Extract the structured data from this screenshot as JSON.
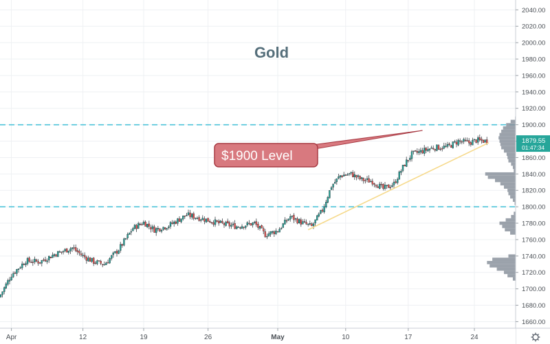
{
  "chart_data": {
    "type": "candlestick",
    "title": "Gold",
    "instrument": "Gold",
    "y_axis": {
      "ticks": [
        1660,
        1680,
        1700,
        1720,
        1740,
        1760,
        1780,
        1800,
        1820,
        1840,
        1860,
        1880,
        1900,
        1920,
        1940,
        1960,
        1980,
        2000,
        2020,
        2040
      ],
      "tick_labels": [
        "1660.00",
        "1680.00",
        "1700.00",
        "1720.00",
        "1740.00",
        "1760.00",
        "1780.00",
        "1800.00",
        "1820.00",
        "1840.00",
        "1860.00",
        "1880.00",
        "1900.00",
        "1920.00",
        "1940.00",
        "1960.00",
        "1980.00",
        "2000.00",
        "2020.00",
        "2040.00"
      ],
      "range": [
        1652,
        2052
      ],
      "side": "right"
    },
    "x_axis": {
      "tick_labels": [
        "Apr",
        "12",
        "19",
        "26",
        "May",
        "10",
        "17",
        "24"
      ],
      "tick_bold": [
        false,
        false,
        false,
        false,
        true,
        false,
        false,
        false
      ],
      "tick_bar_index": [
        6,
        46,
        80,
        116,
        155,
        193,
        228,
        265
      ],
      "bars_total": 271
    },
    "price_label": {
      "value": "1879.55",
      "countdown": "01:47:34",
      "color": "#26a69a"
    },
    "horizontal_lines": [
      {
        "value": 1900,
        "style": "dashed",
        "color": "#4cc3d9"
      },
      {
        "value": 1800,
        "style": "dashed",
        "color": "#4cc3d9"
      }
    ],
    "trendline": {
      "from": {
        "bar": 172,
        "value": 1772
      },
      "to": {
        "bar": 273,
        "value": 1878
      },
      "color": "#f6d98a"
    },
    "callout": {
      "text": "$1900 Level",
      "color": "#c0464f",
      "points_to": {
        "bar": 236,
        "value": 1893
      }
    },
    "candle_colors": {
      "up": "#26a69a",
      "down": "#ef5350"
    },
    "anchors": [
      [
        0,
        1693
      ],
      [
        6,
        1717
      ],
      [
        14,
        1734
      ],
      [
        22,
        1733
      ],
      [
        30,
        1742
      ],
      [
        40,
        1750
      ],
      [
        46,
        1740
      ],
      [
        52,
        1733
      ],
      [
        58,
        1730
      ],
      [
        66,
        1748
      ],
      [
        74,
        1774
      ],
      [
        80,
        1781
      ],
      [
        86,
        1772
      ],
      [
        94,
        1777
      ],
      [
        104,
        1790
      ],
      [
        112,
        1786
      ],
      [
        122,
        1780
      ],
      [
        132,
        1776
      ],
      [
        142,
        1780
      ],
      [
        148,
        1766
      ],
      [
        155,
        1771
      ],
      [
        162,
        1788
      ],
      [
        168,
        1781
      ],
      [
        174,
        1776
      ],
      [
        180,
        1796
      ],
      [
        185,
        1825
      ],
      [
        190,
        1838
      ],
      [
        196,
        1840
      ],
      [
        202,
        1833
      ],
      [
        208,
        1831
      ],
      [
        214,
        1822
      ],
      [
        220,
        1828
      ],
      [
        226,
        1852
      ],
      [
        230,
        1864
      ],
      [
        236,
        1868
      ],
      [
        242,
        1872
      ],
      [
        250,
        1873
      ],
      [
        256,
        1880
      ],
      [
        262,
        1878
      ],
      [
        266,
        1881
      ],
      [
        272,
        1880
      ]
    ],
    "volume_profile": {
      "color": "#8a929c",
      "zero_at_bar": 294,
      "unit_bars": 0.86,
      "rows": [
        [
          1924,
          6
        ],
        [
          1920,
          9
        ],
        [
          1916,
          12
        ],
        [
          1912,
          18
        ],
        [
          1908,
          25
        ],
        [
          1904,
          35
        ],
        [
          1900,
          45
        ],
        [
          1896,
          52
        ],
        [
          1892,
          56
        ],
        [
          1888,
          60
        ],
        [
          1884,
          62
        ],
        [
          1880,
          60
        ],
        [
          1876,
          58
        ],
        [
          1872,
          56
        ],
        [
          1868,
          50
        ],
        [
          1864,
          44
        ],
        [
          1860,
          42
        ],
        [
          1856,
          40
        ],
        [
          1852,
          34
        ],
        [
          1848,
          30
        ],
        [
          1844,
          28
        ],
        [
          1840,
          92
        ],
        [
          1836,
          86
        ],
        [
          1832,
          70
        ],
        [
          1828,
          58
        ],
        [
          1824,
          50
        ],
        [
          1820,
          42
        ],
        [
          1816,
          40
        ],
        [
          1812,
          36
        ],
        [
          1808,
          30
        ],
        [
          1804,
          26
        ],
        [
          1800,
          24
        ],
        [
          1796,
          20
        ],
        [
          1792,
          28
        ],
        [
          1788,
          34
        ],
        [
          1784,
          46
        ],
        [
          1780,
          60
        ],
        [
          1776,
          54
        ],
        [
          1772,
          48
        ],
        [
          1768,
          36
        ],
        [
          1764,
          18
        ],
        [
          1748,
          8
        ],
        [
          1744,
          16
        ],
        [
          1740,
          40
        ],
        [
          1736,
          76
        ],
        [
          1732,
          88
        ],
        [
          1728,
          82
        ],
        [
          1724,
          66
        ],
        [
          1720,
          50
        ],
        [
          1716,
          42
        ],
        [
          1712,
          30
        ],
        [
          1708,
          20
        ],
        [
          1704,
          10
        ],
        [
          1700,
          4
        ]
      ]
    }
  }
}
